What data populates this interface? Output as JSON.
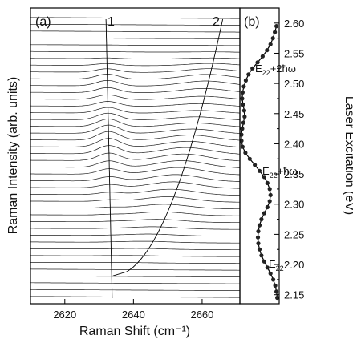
{
  "chart_data": [
    {
      "type": "line",
      "panel_label": "(a)",
      "xlabel": "Raman Shift (cm⁻¹)",
      "ylabel": "Raman Intensity (arb. units)",
      "xlim": [
        2610,
        2671
      ],
      "x_ticks": [
        2620,
        2640,
        2660
      ],
      "x_tick_labels": [
        "2620",
        "2640",
        "2660"
      ],
      "spectra_count": 42,
      "peak_labels": [
        "1",
        "2"
      ],
      "legend": "none",
      "grid": false
    },
    {
      "type": "line",
      "panel_label": "(b)",
      "ylabel": "Laser Excitation (eV)",
      "ylim": [
        2.135,
        2.625
      ],
      "y_ticks": [
        2.15,
        2.2,
        2.25,
        2.3,
        2.35,
        2.4,
        2.45,
        2.5,
        2.55,
        2.6
      ],
      "y_tick_labels": [
        "2.15",
        "2.20",
        "2.25",
        "2.30",
        "2.35",
        "2.40",
        "2.45",
        "2.50",
        "2.55",
        "2.60"
      ],
      "annotations": [
        "E₂₂",
        "E₂₂+ħω",
        "E₂₂+2ħω"
      ],
      "series": [
        {
          "x": [
            0.95,
            0.93,
            0.9,
            0.85,
            0.78,
            0.7,
            0.62,
            0.55,
            0.5,
            0.47,
            0.46,
            0.47,
            0.5,
            0.55,
            0.62,
            0.7,
            0.76,
            0.78,
            0.76,
            0.7,
            0.62,
            0.5,
            0.38,
            0.25,
            0.14,
            0.07,
            0.04,
            0.04,
            0.06,
            0.09,
            0.12,
            0.11,
            0.08,
            0.06,
            0.07,
            0.1,
            0.15,
            0.22,
            0.32,
            0.45,
            0.58,
            0.69,
            0.78,
            0.84,
            0.89,
            0.93
          ],
          "y": [
            2.145,
            2.155,
            2.165,
            2.175,
            2.185,
            2.195,
            2.205,
            2.215,
            2.225,
            2.235,
            2.245,
            2.255,
            2.265,
            2.275,
            2.285,
            2.295,
            2.305,
            2.315,
            2.325,
            2.335,
            2.345,
            2.355,
            2.365,
            2.375,
            2.385,
            2.395,
            2.405,
            2.415,
            2.425,
            2.435,
            2.445,
            2.455,
            2.465,
            2.475,
            2.485,
            2.495,
            2.505,
            2.515,
            2.525,
            2.535,
            2.545,
            2.555,
            2.565,
            2.575,
            2.585,
            2.595
          ]
        }
      ]
    }
  ]
}
